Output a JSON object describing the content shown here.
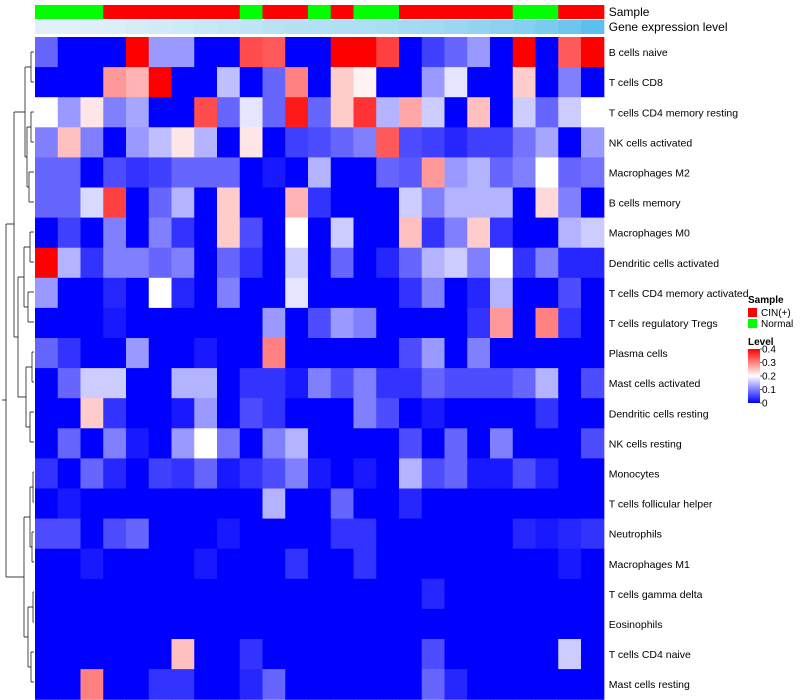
{
  "chart_data": {
    "type": "heatmap",
    "title": "",
    "annotation_tracks": [
      {
        "name": "Sample",
        "values": [
          "Normal",
          "Normal",
          "Normal",
          "CIN(+)",
          "CIN(+)",
          "CIN(+)",
          "CIN(+)",
          "CIN(+)",
          "CIN(+)",
          "Normal",
          "CIN(+)",
          "CIN(+)",
          "Normal",
          "CIN(+)",
          "Normal",
          "Normal",
          "CIN(+)",
          "CIN(+)",
          "CIN(+)",
          "CIN(+)",
          "CIN(+)",
          "Normal",
          "Normal",
          "CIN(+)",
          "CIN(+)"
        ]
      },
      {
        "name": "Gene expression level",
        "values": [
          0.05,
          0.06,
          0.07,
          0.1,
          0.13,
          0.16,
          0.19,
          0.23,
          0.26,
          0.3,
          0.33,
          0.36,
          0.38,
          0.4,
          0.42,
          0.45,
          0.48,
          0.52,
          0.55,
          0.6,
          0.65,
          0.7,
          0.78,
          0.88,
          1.0
        ]
      }
    ],
    "rows": [
      "B cells naive",
      "T cells CD8",
      "T cells CD4 memory resting",
      "NK cells activated",
      "Macrophages M2",
      "B cells memory",
      "Macrophages M0",
      "Dendritic cells activated",
      "T cells CD4 memory activated",
      "T cells regulatory  Tregs",
      "Plasma cells",
      "Mast cells activated",
      "Dendritic cells resting",
      "NK cells resting",
      "Monocytes",
      "T cells follicular helper",
      "Neutrophils",
      "Macrophages M1",
      "T cells gamma delta",
      "Eosinophils",
      "T cells CD4 naive",
      "Mast cells resting"
    ],
    "values": [
      [
        0.08,
        0,
        0,
        0,
        0.4,
        0.12,
        0.12,
        0,
        0,
        0.34,
        0.33,
        0,
        0,
        0.4,
        0.4,
        0.35,
        0,
        0.05,
        0.08,
        0.12,
        0,
        0.4,
        0,
        0.33,
        0.4
      ],
      [
        0,
        0,
        0,
        0.28,
        0.26,
        0.4,
        0,
        0,
        0.15,
        0,
        0.08,
        0.3,
        0,
        0.24,
        0.21,
        0,
        0,
        0.12,
        0.18,
        0,
        0,
        0.24,
        0,
        0.1,
        0
      ],
      [
        0.2,
        0.12,
        0.22,
        0.1,
        0.13,
        0,
        0,
        0.34,
        0.08,
        0.18,
        0.08,
        0.38,
        0.08,
        0.24,
        0.36,
        0.14,
        0.27,
        0.16,
        0,
        0.25,
        0,
        0.16,
        0.08,
        0.16,
        0.2
      ],
      [
        0.1,
        0.25,
        0.1,
        0,
        0.12,
        0.15,
        0.22,
        0.14,
        0,
        0.22,
        0,
        0.05,
        0.06,
        0.08,
        0.1,
        0.33,
        0.06,
        0.05,
        0.03,
        0.05,
        0.05,
        0.09,
        0.13,
        0,
        0.12
      ],
      [
        0.08,
        0.08,
        0,
        0.06,
        0.04,
        0.05,
        0.08,
        0.08,
        0.08,
        0,
        0.02,
        0,
        0.14,
        0,
        0,
        0.08,
        0.07,
        0.28,
        0.12,
        0.14,
        0.08,
        0.1,
        0.2,
        0.08,
        0.09
      ],
      [
        0.08,
        0.08,
        0.17,
        0.35,
        0,
        0.08,
        0.14,
        0,
        0.24,
        0,
        0,
        0.26,
        0.04,
        0,
        0,
        0,
        0.16,
        0.1,
        0.14,
        0.14,
        0.14,
        0,
        0.23,
        0.1,
        0
      ],
      [
        0,
        0.05,
        0,
        0.1,
        0,
        0.1,
        0.04,
        0,
        0.24,
        0.06,
        0,
        0.2,
        0,
        0.16,
        0,
        0,
        0.25,
        0.04,
        0.1,
        0.24,
        0.04,
        0,
        0,
        0.14,
        0.16
      ],
      [
        0.4,
        0.14,
        0.04,
        0.1,
        0.1,
        0.08,
        0.1,
        0,
        0.08,
        0.04,
        0,
        0.16,
        0,
        0.08,
        0,
        0.03,
        0.08,
        0.14,
        0.16,
        0.1,
        0.2,
        0.04,
        0.1,
        0.03,
        0.03
      ],
      [
        0.12,
        0,
        0,
        0.03,
        0,
        0.2,
        0.03,
        0,
        0.1,
        0,
        0,
        0.18,
        0,
        0,
        0,
        0,
        0.04,
        0.1,
        0,
        0.03,
        0.14,
        0,
        0,
        0.06,
        0
      ],
      [
        0,
        0,
        0,
        0.02,
        0,
        0,
        0,
        0,
        0,
        0,
        0.12,
        0,
        0.06,
        0.12,
        0.1,
        0,
        0,
        0,
        0,
        0.04,
        0.28,
        0,
        0.3,
        0.04,
        0
      ],
      [
        0.08,
        0.04,
        0,
        0,
        0.12,
        0,
        0,
        0.02,
        0,
        0,
        0.3,
        0,
        0,
        0,
        0,
        0,
        0.06,
        0.12,
        0,
        0.1,
        0,
        0,
        0,
        0,
        0
      ],
      [
        0,
        0.08,
        0.16,
        0.16,
        0,
        0,
        0.14,
        0.14,
        0,
        0.04,
        0.04,
        0.02,
        0.1,
        0.06,
        0.1,
        0.04,
        0.04,
        0.08,
        0.06,
        0.06,
        0.06,
        0.08,
        0.14,
        0,
        0.06
      ],
      [
        0,
        0,
        0.24,
        0.04,
        0,
        0,
        0.02,
        0.12,
        0,
        0.06,
        0.04,
        0,
        0,
        0,
        0.1,
        0.06,
        0,
        0.02,
        0,
        0,
        0,
        0,
        0.04,
        0,
        0
      ],
      [
        0,
        0.08,
        0,
        0.1,
        0.02,
        0,
        0.12,
        0.2,
        0.09,
        0,
        0.1,
        0.14,
        0,
        0,
        0,
        0,
        0.06,
        0,
        0.08,
        0,
        0.1,
        0,
        0,
        0,
        0.06
      ],
      [
        0.04,
        0,
        0.08,
        0.03,
        0,
        0.05,
        0.04,
        0.08,
        0.02,
        0.04,
        0.06,
        0.1,
        0.02,
        0,
        0.02,
        0,
        0.14,
        0.06,
        0.08,
        0.02,
        0.02,
        0.06,
        0.03,
        0,
        0
      ],
      [
        0,
        0.02,
        0,
        0,
        0,
        0,
        0,
        0,
        0,
        0,
        0.14,
        0,
        0,
        0.08,
        0,
        0,
        0.03,
        0,
        0,
        0,
        0,
        0,
        0,
        0,
        0
      ],
      [
        0.06,
        0.06,
        0,
        0.06,
        0.08,
        0,
        0,
        0,
        0.02,
        0,
        0,
        0,
        0,
        0.04,
        0.04,
        0,
        0,
        0,
        0,
        0,
        0,
        0.03,
        0.02,
        0.03,
        0.04
      ],
      [
        0,
        0,
        0.02,
        0,
        0,
        0,
        0,
        0.02,
        0,
        0,
        0,
        0.04,
        0,
        0,
        0.04,
        0,
        0,
        0,
        0,
        0,
        0,
        0,
        0,
        0.02,
        0
      ],
      [
        0,
        0,
        0,
        0,
        0,
        0,
        0,
        0,
        0,
        0,
        0,
        0,
        0,
        0,
        0,
        0,
        0,
        0.03,
        0,
        0,
        0,
        0,
        0,
        0,
        0
      ],
      [
        0,
        0,
        0,
        0,
        0,
        0,
        0,
        0,
        0,
        0,
        0,
        0,
        0,
        0,
        0,
        0,
        0,
        0,
        0,
        0,
        0,
        0,
        0,
        0,
        0
      ],
      [
        0,
        0,
        0,
        0,
        0,
        0,
        0.25,
        0,
        0,
        0.04,
        0,
        0,
        0,
        0,
        0,
        0,
        0,
        0.06,
        0,
        0,
        0,
        0,
        0,
        0.16,
        0
      ],
      [
        0,
        0,
        0.3,
        0,
        0,
        0.04,
        0.04,
        0,
        0,
        0.03,
        0.08,
        0,
        0,
        0,
        0,
        0,
        0,
        0.08,
        0.03,
        0,
        0,
        0,
        0,
        0,
        0
      ]
    ],
    "color_scale": {
      "min": 0,
      "mid": 0.2,
      "max": 0.4,
      "low_color": "#0000FF",
      "mid_color": "#FFFFFF",
      "high_color": "#FF0000"
    },
    "dendrogram": "rows clustered (hierarchical), shown on the left"
  },
  "legend": {
    "sample_title": "Sample",
    "sample_entries": [
      {
        "label": "CIN(+)",
        "color": "#FF0000"
      },
      {
        "label": "Normal",
        "color": "#00FF00"
      }
    ],
    "level_title": "Level",
    "level_ticks": [
      "0.4",
      "0.3",
      "0.2",
      "0.1",
      "0"
    ],
    "level_tick_values": [
      0.4,
      0.3,
      0.2,
      0.1,
      0
    ]
  },
  "annotation_colors": {
    "CIN(+)": "#FF0000",
    "Normal": "#00FF00",
    "expr_low": "#E8F4FA",
    "expr_high": "#5BC0EB"
  }
}
